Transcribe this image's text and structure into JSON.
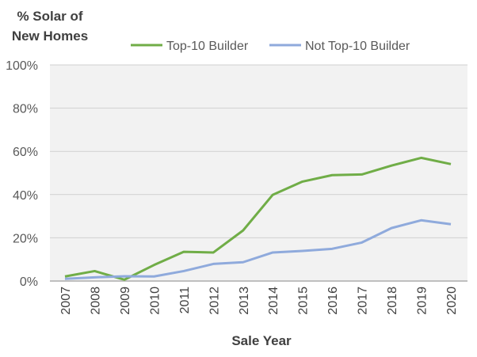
{
  "chart_data": {
    "type": "line",
    "title": "",
    "ylabel": "% Solar of New Homes",
    "xlabel": "Sale Year",
    "categories": [
      "2007",
      "2008",
      "2009",
      "2010",
      "2011",
      "2012",
      "2013",
      "2014",
      "2015",
      "2016",
      "2017",
      "2018",
      "2019",
      "2020"
    ],
    "ylim": [
      0,
      100
    ],
    "yticks": [
      "0%",
      "20%",
      "40%",
      "60%",
      "80%",
      "100%"
    ],
    "grid": true,
    "legend": "top",
    "series": [
      {
        "name": "Top-10 Builder",
        "color": "#70ad47",
        "values": [
          2.1,
          4.6,
          0.6,
          7.4,
          13.5,
          13.2,
          23.4,
          39.9,
          46.0,
          49.0,
          49.3,
          53.4,
          57.0,
          54.1
        ]
      },
      {
        "name": "Not Top-10 Builder",
        "color": "#8faadc",
        "values": [
          1.0,
          1.7,
          2.2,
          2.1,
          4.6,
          7.9,
          8.7,
          13.2,
          13.9,
          14.9,
          17.8,
          24.5,
          28.1,
          26.3
        ]
      }
    ]
  }
}
